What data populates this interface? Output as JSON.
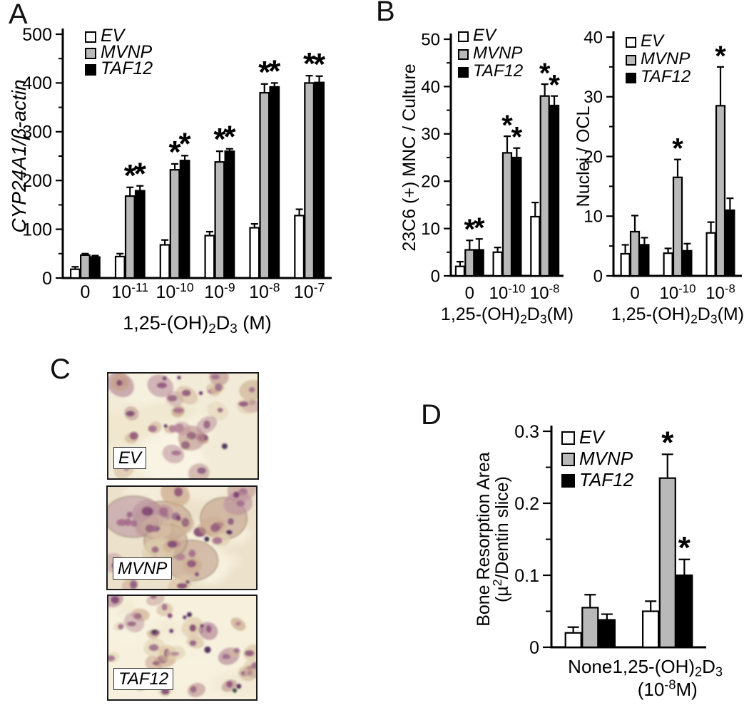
{
  "panels": {
    "a": {
      "label": "A"
    },
    "b": {
      "label": "B"
    },
    "c": {
      "label": "C",
      "images": [
        {
          "label": "EV"
        },
        {
          "label": "MVNP"
        },
        {
          "label": "TAF12"
        }
      ],
      "stain_palette": {
        "backgrounds": [
          "#f2ebd7",
          "#ece1cb",
          "#f6f0dd"
        ],
        "cytoplasm": [
          "#d7bd96",
          "#dcc6a8",
          "#cdab8e",
          "#c6a088",
          "#bd9490",
          "#b98f9c",
          "#e0d0b0",
          "#d0b79b"
        ],
        "nuclei": [
          "#a2688a",
          "#8d4f78",
          "#b07d96",
          "#7c416f",
          "#8a5680",
          "#9a698a",
          "#94607d"
        ],
        "dark_spots": [
          "#5c2a66",
          "#472058",
          "#392a4c",
          "#234438",
          "#7d3b72",
          "#3f2950"
        ],
        "giant_cell_fill": [
          "#c9ac97",
          "#bd9aa0",
          "#c3a3a8"
        ],
        "giant_cell_outline": "#8f7a5e"
      }
    },
    "d": {
      "label": "D"
    }
  },
  "legend_labels": [
    "EV",
    "MVNP",
    "TAF12"
  ],
  "series_colors": {
    "EV": "#ffffff",
    "MVNP": "#b9b9b9",
    "TAF12": "#000000"
  },
  "sig_marker": "*",
  "chart_data": [
    {
      "id": "chartA",
      "type": "bar",
      "panel": "A",
      "ylim": [
        0,
        500
      ],
      "yticks": [
        {
          "v": 0,
          "label": "0"
        },
        {
          "v": 100,
          "label": "100"
        },
        {
          "v": 200,
          "label": "200"
        },
        {
          "v": 300,
          "label": "300"
        },
        {
          "v": 400,
          "label": "400"
        },
        {
          "v": 500,
          "label": "500"
        }
      ],
      "yminor_step": 50,
      "ylabel": {
        "text": "CYP24A1/β-actin",
        "italic": true,
        "lines": [
          [
            {
              "t": "CYP24A1/β-actin"
            }
          ]
        ]
      },
      "xlabel": {
        "text": "1,25-(OH)₂D₃ (M)",
        "lines": [
          [
            {
              "t": "1,25-(OH)"
            },
            {
              "t": "2",
              "sub": true
            },
            {
              "t": "D"
            },
            {
              "t": "3",
              "sub": true
            },
            {
              "t": " (M)"
            }
          ]
        ]
      },
      "categories": [
        {
          "text": "0",
          "lines": [
            [
              {
                "t": "0"
              }
            ]
          ]
        },
        {
          "text": "10⁻¹¹",
          "lines": [
            [
              {
                "t": "10"
              },
              {
                "t": "-11",
                "sup": true
              }
            ]
          ]
        },
        {
          "text": "10⁻¹⁰",
          "lines": [
            [
              {
                "t": "10"
              },
              {
                "t": "-10",
                "sup": true
              }
            ]
          ]
        },
        {
          "text": "10⁻⁹",
          "lines": [
            [
              {
                "t": "10"
              },
              {
                "t": "-9",
                "sup": true
              }
            ]
          ]
        },
        {
          "text": "10⁻⁸",
          "lines": [
            [
              {
                "t": "10"
              },
              {
                "t": "-8",
                "sup": true
              }
            ]
          ]
        },
        {
          "text": "10⁻⁷",
          "lines": [
            [
              {
                "t": "10"
              },
              {
                "t": "-7",
                "sup": true
              }
            ]
          ]
        }
      ],
      "series": [
        {
          "name": "EV",
          "color": "#ffffff",
          "values": [
            18,
            44,
            68,
            87,
            103,
            128
          ],
          "errors": [
            5,
            6,
            10,
            8,
            8,
            13
          ]
        },
        {
          "name": "MVNP",
          "color": "#b9b9b9",
          "values": [
            47,
            168,
            222,
            238,
            380,
            400
          ],
          "errors": [
            3,
            18,
            12,
            22,
            18,
            15
          ]
        },
        {
          "name": "TAF12",
          "color": "#000000",
          "values": [
            43,
            179,
            241,
            260,
            392,
            401
          ],
          "errors": [
            3,
            10,
            10,
            5,
            8,
            13
          ]
        }
      ],
      "sig": [
        {
          "cat": 1,
          "series": [
            1,
            2
          ]
        },
        {
          "cat": 2,
          "series": [
            1,
            2
          ]
        },
        {
          "cat": 3,
          "series": [
            1,
            2
          ]
        },
        {
          "cat": 4,
          "series": [
            1,
            2
          ]
        },
        {
          "cat": 5,
          "series": [
            1,
            2
          ]
        }
      ]
    },
    {
      "id": "chartB1",
      "type": "bar",
      "panel": "B",
      "ylim": [
        0,
        50
      ],
      "yticks": [
        {
          "v": 0,
          "label": "0"
        },
        {
          "v": 10,
          "label": "10"
        },
        {
          "v": 20,
          "label": "20"
        },
        {
          "v": 30,
          "label": "30"
        },
        {
          "v": 40,
          "label": "40"
        },
        {
          "v": 50,
          "label": "50"
        }
      ],
      "yminor_step": 5,
      "ylabel": {
        "text": "23C6 (+) MNC / Culture",
        "italic": false,
        "lines": [
          [
            {
              "t": "23C6 (+) MNC / Culture"
            }
          ]
        ]
      },
      "xlabel": {
        "text": "1,25-(OH)₂D₃(M)",
        "lines": [
          [
            {
              "t": "1,25-(OH)"
            },
            {
              "t": "2",
              "sub": true
            },
            {
              "t": "D"
            },
            {
              "t": "3",
              "sub": true
            },
            {
              "t": "(M)"
            }
          ]
        ]
      },
      "categories": [
        {
          "text": "0",
          "lines": [
            [
              {
                "t": "0"
              }
            ]
          ]
        },
        {
          "text": "10⁻¹⁰",
          "lines": [
            [
              {
                "t": "10"
              },
              {
                "t": "-10",
                "sup": true
              }
            ]
          ]
        },
        {
          "text": "10⁻⁸",
          "lines": [
            [
              {
                "t": "10"
              },
              {
                "t": "-8",
                "sup": true
              }
            ]
          ]
        }
      ],
      "series": [
        {
          "name": "EV",
          "color": "#ffffff",
          "values": [
            2,
            5,
            12.5
          ],
          "errors": [
            1,
            1,
            3
          ]
        },
        {
          "name": "MVNP",
          "color": "#b9b9b9",
          "values": [
            5.5,
            26,
            38
          ],
          "errors": [
            2,
            3.5,
            2.5
          ]
        },
        {
          "name": "TAF12",
          "color": "#000000",
          "values": [
            5.5,
            25,
            36
          ],
          "errors": [
            2.3,
            2,
            2
          ]
        }
      ],
      "sig": [
        {
          "cat": 0,
          "series": [
            1,
            2
          ]
        },
        {
          "cat": 1,
          "series": [
            1,
            2
          ]
        },
        {
          "cat": 2,
          "series": [
            1,
            2
          ]
        }
      ]
    },
    {
      "id": "chartB2",
      "type": "bar",
      "panel": "B",
      "ylim": [
        0,
        40
      ],
      "yticks": [
        {
          "v": 0,
          "label": "0"
        },
        {
          "v": 10,
          "label": "10"
        },
        {
          "v": 20,
          "label": "20"
        },
        {
          "v": 30,
          "label": "30"
        },
        {
          "v": 40,
          "label": "40"
        }
      ],
      "yminor_step": 5,
      "ylabel": {
        "text": "Nuclei / OCL",
        "italic": false,
        "lines": [
          [
            {
              "t": "Nuclei / OCL"
            }
          ]
        ]
      },
      "xlabel": {
        "text": "1,25-(OH)₂D₃(M)",
        "lines": [
          [
            {
              "t": "1,25-(OH)"
            },
            {
              "t": "2",
              "sub": true
            },
            {
              "t": "D"
            },
            {
              "t": "3",
              "sub": true
            },
            {
              "t": "(M)"
            }
          ]
        ]
      },
      "categories": [
        {
          "text": "0",
          "lines": [
            [
              {
                "t": "0"
              }
            ]
          ]
        },
        {
          "text": "10⁻¹⁰",
          "lines": [
            [
              {
                "t": "10"
              },
              {
                "t": "-10",
                "sup": true
              }
            ]
          ]
        },
        {
          "text": "10⁻⁸",
          "lines": [
            [
              {
                "t": "10"
              },
              {
                "t": "-8",
                "sup": true
              }
            ]
          ]
        }
      ],
      "series": [
        {
          "name": "EV",
          "color": "#ffffff",
          "values": [
            3.7,
            3.8,
            7.2
          ],
          "errors": [
            1.5,
            0.8,
            1.8
          ]
        },
        {
          "name": "MVNP",
          "color": "#b9b9b9",
          "values": [
            7.4,
            16.5,
            28.5
          ],
          "errors": [
            2.7,
            3,
            6.5
          ]
        },
        {
          "name": "TAF12",
          "color": "#000000",
          "values": [
            5.2,
            4.2,
            11
          ],
          "errors": [
            1.2,
            1.2,
            2
          ]
        }
      ],
      "sig": [
        {
          "cat": 1,
          "series": [
            1
          ]
        },
        {
          "cat": 2,
          "series": [
            1
          ]
        }
      ]
    },
    {
      "id": "chartD",
      "type": "bar",
      "panel": "D",
      "ylim": [
        0,
        0.3
      ],
      "yticks": [
        {
          "v": 0,
          "label": "0"
        },
        {
          "v": 0.1,
          "label": "0.1"
        },
        {
          "v": 0.2,
          "label": "0.2"
        },
        {
          "v": 0.3,
          "label": "0.3"
        }
      ],
      "yminor_step": 0.05,
      "ylabel": {
        "text": "Bone Resorption Area (µ²/Dentin slice)",
        "italic": false,
        "lines": [
          [
            {
              "t": "Bone Resorption Area"
            }
          ],
          [
            {
              "t": "(µ"
            },
            {
              "t": "2",
              "sup": true
            },
            {
              "t": "/Dentin slice)"
            }
          ]
        ]
      },
      "xlabel": null,
      "categories": [
        {
          "text": "None",
          "lines": [
            [
              {
                "t": "None"
              }
            ]
          ]
        },
        {
          "text": "1,25-(OH)₂D₃ (10⁻⁸M)",
          "lines": [
            [
              {
                "t": "1,25-(OH)"
              },
              {
                "t": "2",
                "sub": true
              },
              {
                "t": "D"
              },
              {
                "t": "3",
                "sub": true
              }
            ],
            [
              {
                "t": "(10"
              },
              {
                "t": "-8",
                "sup": true
              },
              {
                "t": "M)"
              }
            ]
          ]
        }
      ],
      "series": [
        {
          "name": "EV",
          "color": "#ffffff",
          "values": [
            0.02,
            0.05
          ],
          "errors": [
            0.008,
            0.014
          ]
        },
        {
          "name": "MVNP",
          "color": "#b9b9b9",
          "values": [
            0.055,
            0.235
          ],
          "errors": [
            0.018,
            0.033
          ]
        },
        {
          "name": "TAF12",
          "color": "#000000",
          "values": [
            0.038,
            0.1
          ],
          "errors": [
            0.008,
            0.022
          ]
        }
      ],
      "sig": [
        {
          "cat": 1,
          "series": [
            1,
            2
          ]
        }
      ]
    }
  ]
}
